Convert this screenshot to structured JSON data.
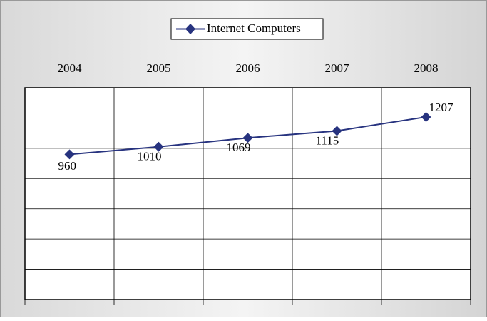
{
  "chart_data": {
    "type": "line",
    "categories": [
      "2004",
      "2005",
      "2006",
      "2007",
      "2008"
    ],
    "series": [
      {
        "name": "Internet Computers",
        "color": "#27337f",
        "values": [
          960,
          1010,
          1069,
          1115,
          1207
        ]
      }
    ],
    "ylim": [
      0,
      1400
    ],
    "yticks": [
      0,
      200,
      400,
      600,
      800,
      1000,
      1200,
      1400
    ],
    "grid": true
  }
}
